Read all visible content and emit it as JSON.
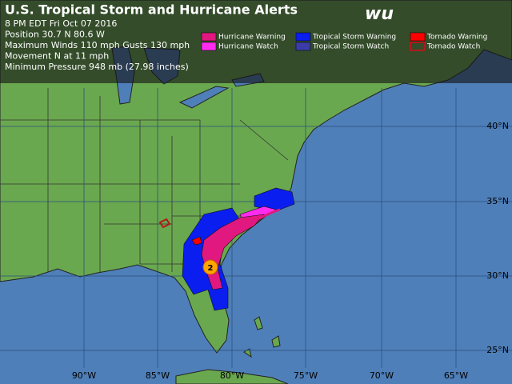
{
  "header": {
    "title": "U.S. Tropical Storm and Hurricane Alerts",
    "logo": "wu",
    "info": [
      "8 PM EDT Fri Oct 07 2016",
      "Position 30.7 N 80.6 W",
      "Maximum Winds  110 mph  Gusts  130 mph",
      "Movement N at 11 mph",
      "Minimum Pressure 948 mb (27.98 inches)"
    ]
  },
  "legend": [
    {
      "label": "Hurricane Warning",
      "color": "#e0187f"
    },
    {
      "label": "Hurricane Watch",
      "color": "#ff2cf0"
    },
    {
      "label": "Tropical Storm Warning",
      "color": "#0a1ef0"
    },
    {
      "label": "Tropical Storm Watch",
      "color": "#3c3ca8"
    },
    {
      "label": "Tornado Warning",
      "color": "#ff0000"
    },
    {
      "label": "Tornado Watch",
      "color": "#b01a1a"
    }
  ],
  "map": {
    "lat_labels": [
      "40°N",
      "35°N",
      "30°N",
      "25°N"
    ],
    "lon_labels": [
      "90°W",
      "85°W",
      "80°W",
      "75°W",
      "70°W",
      "65°W"
    ],
    "storm_category": "2"
  }
}
